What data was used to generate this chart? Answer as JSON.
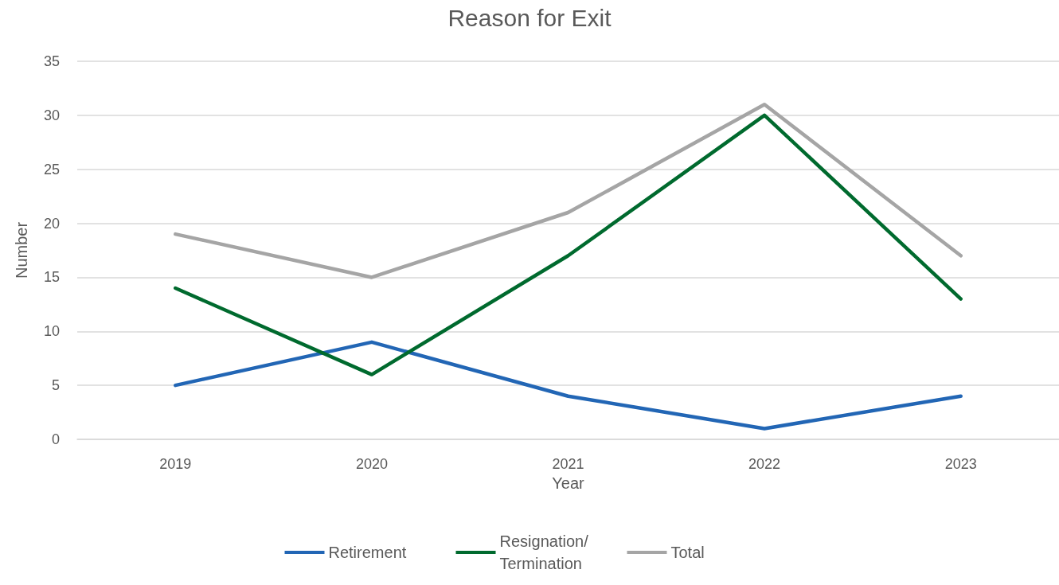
{
  "chart_data": {
    "type": "line",
    "title": "Reason for Exit",
    "xlabel": "Year",
    "ylabel": "Number",
    "categories": [
      "2019",
      "2020",
      "2021",
      "2022",
      "2023"
    ],
    "series": [
      {
        "name": "Retirement",
        "color": "#2266b5",
        "values": [
          5,
          9,
          4,
          1,
          4
        ]
      },
      {
        "name": "Resignation/ Termination",
        "color": "#006a2e",
        "values": [
          14,
          6,
          17,
          30,
          13
        ]
      },
      {
        "name": "Total",
        "color": "#a5a5a5",
        "values": [
          19,
          15,
          21,
          31,
          17
        ]
      }
    ],
    "ylim": [
      0,
      35
    ],
    "yticks": [
      0,
      5,
      10,
      15,
      20,
      25,
      30,
      35
    ],
    "grid": "y",
    "legend": "bottom",
    "marker": "none",
    "line_style": "solid"
  }
}
